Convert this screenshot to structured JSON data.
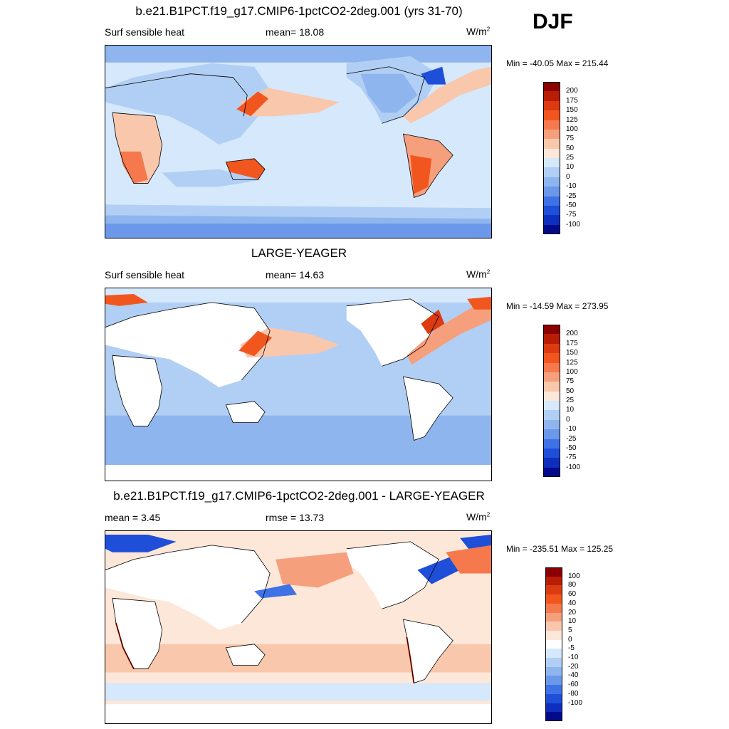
{
  "season": "DJF",
  "panels": [
    {
      "title": "b.e21.B1PCT.f19_g17.CMIP6-1pctCO2-2deg.001 (yrs 31-70)",
      "left_label": "Surf sensible heat",
      "center_label": "mean=  18.08",
      "units": "W/m",
      "units_sup": "2",
      "minmax": "Min = -40.05 Max = 215.44",
      "colorbar": {
        "colors": [
          "#8b0000",
          "#b81d05",
          "#dc3a10",
          "#f2561f",
          "#f5794d",
          "#f69f7d",
          "#f9c7ab",
          "#fde7d9",
          "#d6e8fb",
          "#b1cff4",
          "#8fb5ef",
          "#6c98ea",
          "#3f72e6",
          "#1f4fd9",
          "#0e2fbd",
          "#040a8c"
        ],
        "ticks": [
          "200",
          "175",
          "150",
          "125",
          "100",
          "75",
          "50",
          "25",
          "10",
          "0",
          "-10",
          "-25",
          "-50",
          "-75",
          "-100"
        ]
      }
    },
    {
      "title": "LARGE-YEAGER",
      "left_label": "Surf sensible heat",
      "center_label": "mean=  14.63",
      "units": "W/m",
      "units_sup": "2",
      "minmax": "Min = -14.59 Max = 273.95",
      "colorbar": {
        "colors": [
          "#8b0000",
          "#b81d05",
          "#dc3a10",
          "#f2561f",
          "#f5794d",
          "#f69f7d",
          "#f9c7ab",
          "#fde7d9",
          "#d6e8fb",
          "#b1cff4",
          "#8fb5ef",
          "#6c98ea",
          "#3f72e6",
          "#1f4fd9",
          "#0e2fbd",
          "#040a8c"
        ],
        "ticks": [
          "200",
          "175",
          "150",
          "125",
          "100",
          "75",
          "50",
          "25",
          "10",
          "0",
          "-10",
          "-25",
          "-50",
          "-75",
          "-100"
        ]
      }
    },
    {
      "title": "b.e21.B1PCT.f19_g17.CMIP6-1pctCO2-2deg.001 - LARGE-YEAGER",
      "left_label": "mean =   3.45",
      "center_label": "rmse =  13.73",
      "units": "W/m",
      "units_sup": "2",
      "minmax": "Min = -235.51 Max = 125.25",
      "colorbar": {
        "colors": [
          "#8b0000",
          "#b81d05",
          "#dc3a10",
          "#f2561f",
          "#f5794d",
          "#f69f7d",
          "#f9c7ab",
          "#fde7d9",
          "#ffffff",
          "#d6e8fb",
          "#b1cff4",
          "#8fb5ef",
          "#6c98ea",
          "#3f72e6",
          "#1f4fd9",
          "#0e2fbd",
          "#040a8c"
        ],
        "ticks": [
          "100",
          "80",
          "60",
          "40",
          "20",
          "10",
          "5",
          "0",
          "-5",
          "-10",
          "-20",
          "-40",
          "-60",
          "-80",
          "-100"
        ]
      }
    }
  ]
}
